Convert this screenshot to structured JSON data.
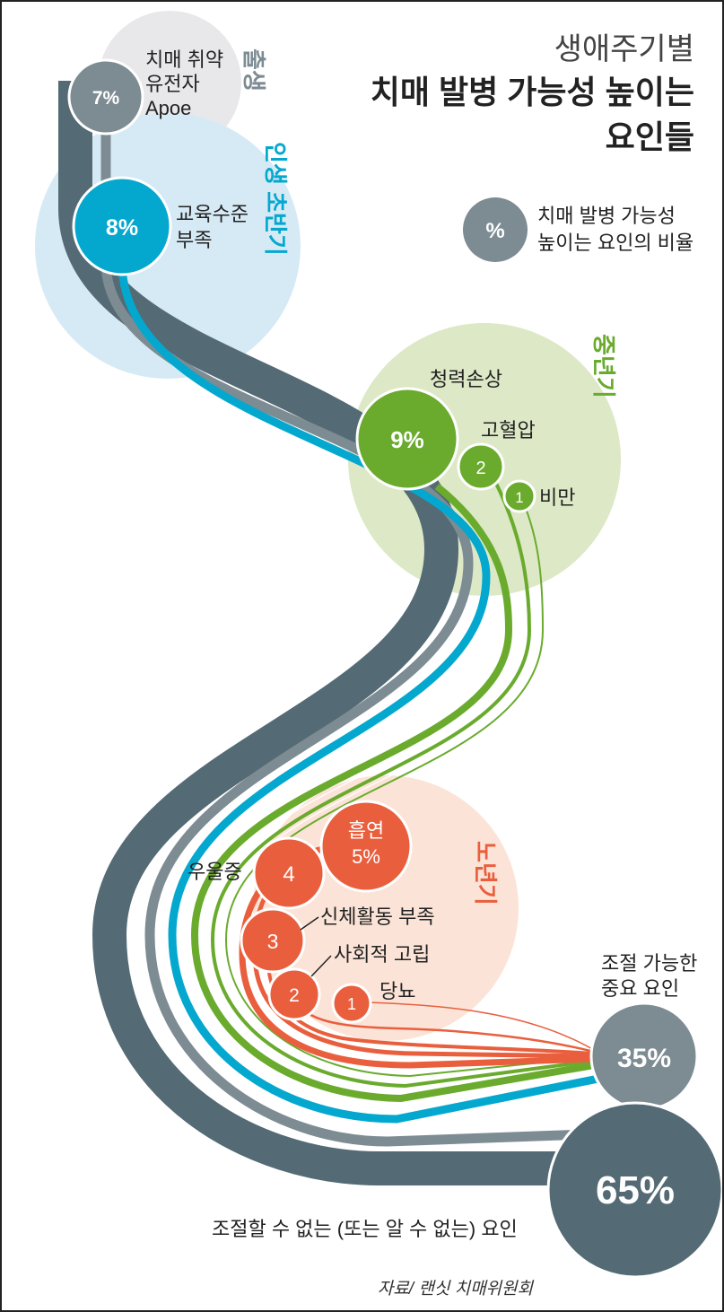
{
  "title": {
    "line1": "생애주기별",
    "line2": "치매 발병 가능성 높이는",
    "line3": "요인들"
  },
  "legend": {
    "symbol": "%",
    "line1": "치매 발병 가능성",
    "line2": "높이는 요인의 비율"
  },
  "stages": {
    "birth": "출생",
    "early_life": "인생 초반기",
    "midlife": "중년기",
    "later_life": "노년기"
  },
  "factors": {
    "apoe": {
      "value": "7%",
      "label_lines": [
        "치매 취약",
        "유전자",
        "Apoe"
      ]
    },
    "education": {
      "value": "8%",
      "label_lines": [
        "교육수준",
        "부족"
      ]
    },
    "hearing_loss": {
      "value": "9%",
      "label": "청력손상"
    },
    "hypertension": {
      "value": "2",
      "label": "고혈압"
    },
    "obesity": {
      "value": "1",
      "label": "비만"
    },
    "smoking": {
      "label": "흡연",
      "value": "5%"
    },
    "depression": {
      "value": "4",
      "label": "우울증"
    },
    "physical_inactivity": {
      "value": "3",
      "label": "신체활동 부족"
    },
    "social_isolation": {
      "value": "2",
      "label": "사회적 고립"
    },
    "diabetes": {
      "value": "1",
      "label": "당뇨"
    }
  },
  "totals": {
    "modifiable": {
      "value": "35%",
      "label_lines": [
        "조절 가능한",
        "중요 요인"
      ]
    },
    "non_modifiable": {
      "value": "65%",
      "label": "조절할 수 없는 (또는 알 수 없는) 요인"
    }
  },
  "source": "자료/ 랜싯 치매위원회",
  "colors": {
    "dark_slate": "#546a74",
    "gray": "#7d8b93",
    "blue": "#04a8cf",
    "green": "#6aab2e",
    "red": "#e95f3e",
    "birth_bg": "#e8e8ea",
    "early_bg": "#d6eaf5",
    "mid_bg": "#dde8c6",
    "late_bg": "#fbe4d7"
  }
}
